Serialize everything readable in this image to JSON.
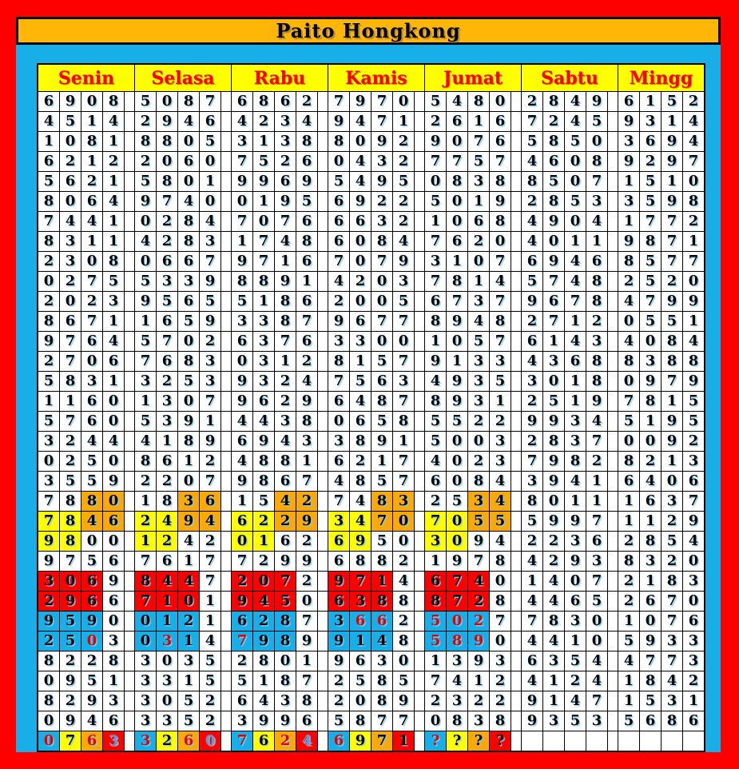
{
  "title": "Paito Hongkong",
  "days": [
    "Senin",
    "Selasa",
    "Rabu",
    "Kamis",
    "Jumat",
    "Sabtu",
    "Mingg"
  ],
  "unknown_result_placeholder": "????",
  "colors": {
    "frame_red": "#FE0000",
    "title_bar_gold": "#FFB606",
    "board_cyan": "#18AEE8",
    "header_yellow": "#FFFF00",
    "header_text_red": "#FE0000",
    "cell_white": "#FFFFFF",
    "highlight_yellow": "#FFFF00",
    "highlight_orange": "#F9A908",
    "highlight_red": "#FE0000",
    "highlight_blue": "#18AEE8",
    "digit_black": "#000000",
    "digit_red": "#E50000",
    "digit_blue": "#5B9BD5"
  },
  "legend_bg_codes": {
    "w": "white",
    "y": "yellow",
    "o": "orange",
    "r": "red",
    "b": "blue"
  },
  "legend_fg_codes": {
    "k": "black",
    "r": "red",
    "b": "blue"
  },
  "rows": [
    [
      "6908",
      "5087",
      "6862",
      "7970",
      "5480",
      "2849",
      "6152"
    ],
    [
      "4514",
      "2946",
      "4234",
      "9471",
      "2616",
      "7245",
      "9314"
    ],
    [
      "1081",
      "8805",
      "3138",
      "8092",
      "9076",
      "5850",
      "3694"
    ],
    [
      "6212",
      "2060",
      "7526",
      "0432",
      "7757",
      "4608",
      "9297"
    ],
    [
      "5621",
      "5801",
      "9969",
      "5495",
      "0838",
      "8507",
      "1510"
    ],
    [
      "8064",
      "9740",
      "0195",
      "6922",
      "5019",
      "2853",
      "3598"
    ],
    [
      "7441",
      "0284",
      "7076",
      "6632",
      "1068",
      "4904",
      "1772"
    ],
    [
      "8311",
      "4283",
      "1748",
      "6084",
      "7620",
      "4011",
      "9871"
    ],
    [
      "2308",
      "0667",
      "9716",
      "7079",
      "3107",
      "6946",
      "8577"
    ],
    [
      "0275",
      "5339",
      "8891",
      "4203",
      "7814",
      "5748",
      "2520"
    ],
    [
      "2023",
      "9565",
      "5186",
      "2005",
      "6737",
      "9678",
      "4799"
    ],
    [
      "8671",
      "1659",
      "3387",
      "9677",
      "8948",
      "2712",
      "0551"
    ],
    [
      "9764",
      "5702",
      "6376",
      "3300",
      "1057",
      "6143",
      "4084"
    ],
    [
      "2706",
      "7683",
      "0312",
      "8157",
      "9133",
      "4368",
      "8388"
    ],
    [
      "5831",
      "3253",
      "9324",
      "7563",
      "4935",
      "3018",
      "0979"
    ],
    [
      "1160",
      "1307",
      "9629",
      "6487",
      "8931",
      "2519",
      "7815"
    ],
    [
      "5760",
      "5391",
      "4438",
      "0658",
      "5522",
      "9934",
      "5195"
    ],
    [
      "3244",
      "4189",
      "6943",
      "3891",
      "5003",
      "2837",
      "0092"
    ],
    [
      "0250",
      "8612",
      "4881",
      "6217",
      "4023",
      "7982",
      "8213"
    ],
    [
      "3559",
      "2207",
      "9867",
      "4857",
      "6084",
      "3941",
      "6406"
    ],
    [
      "7880",
      "1836",
      "1542",
      "7483",
      "2534",
      "8011",
      "1637"
    ],
    [
      "7846",
      "2494",
      "6229",
      "3470",
      "7055",
      "5997",
      "1129"
    ],
    [
      "9800",
      "1242",
      "0162",
      "6950",
      "3094",
      "2236",
      "2854"
    ],
    [
      "9756",
      "7617",
      "7299",
      "6882",
      "1978",
      "4293",
      "8320"
    ],
    [
      "3069",
      "8447",
      "2072",
      "9714",
      "6740",
      "1407",
      "2183"
    ],
    [
      "2966",
      "7101",
      "9450",
      "6388",
      "8728",
      "4465",
      "2670"
    ],
    [
      "9590",
      "0121",
      "6287",
      "3662",
      "5027",
      "7830",
      "1076"
    ],
    [
      "2503",
      "0314",
      "7989",
      "9148",
      "5890",
      "4410",
      "5933"
    ],
    [
      "8228",
      "3035",
      "2801",
      "9630",
      "1393",
      "6354",
      "4773"
    ],
    [
      "0951",
      "3315",
      "5187",
      "2585",
      "7412",
      "4124",
      "1842"
    ],
    [
      "8293",
      "3052",
      "6438",
      "2089",
      "2322",
      "9147",
      "1531"
    ],
    [
      "0946",
      "3352",
      "3996",
      "5877",
      "0838",
      "9353",
      "5686"
    ],
    [
      "0763",
      "3260",
      "7624",
      "6971",
      "????",
      "",
      ""
    ]
  ],
  "highlight_bg": {
    "20": [
      "wwoo",
      "wwoo",
      "wwoo",
      "wwoo",
      "wwoo",
      null,
      null
    ],
    "21": [
      "yyoo",
      "yyoo",
      "yyoo",
      "yyoo",
      "yyoo",
      null,
      null
    ],
    "22": [
      "yyww",
      "yyww",
      "yyww",
      "yyww",
      "yyww",
      null,
      null
    ],
    "24": [
      "rrrw",
      "rrrw",
      "rrrw",
      "rrrw",
      "rrrw",
      null,
      null
    ],
    "25": [
      "rrrw",
      "rrrw",
      "rrrw",
      "rrrw",
      "rrrw",
      null,
      null
    ],
    "26": [
      "bbbw",
      "bbbw",
      "bbbw",
      "bbbw",
      "bbbw",
      null,
      null
    ],
    "27": [
      "bbbw",
      "bbbw",
      "bbbw",
      "bbbw",
      "bbbw",
      null,
      null
    ],
    "32": [
      "byor",
      "byor",
      "byor",
      "byor",
      "byor",
      null,
      null
    ]
  },
  "highlight_fg": {
    "26": [
      null,
      null,
      null,
      "krrk",
      "rrrk",
      null,
      null
    ],
    "27": [
      "kkrk",
      "krkk",
      "rkkk",
      null,
      "rrrk",
      null,
      null
    ],
    "32": [
      "rkrb",
      "rkrb",
      "rkrb",
      "rkkk",
      "rkkk",
      null,
      null
    ]
  }
}
